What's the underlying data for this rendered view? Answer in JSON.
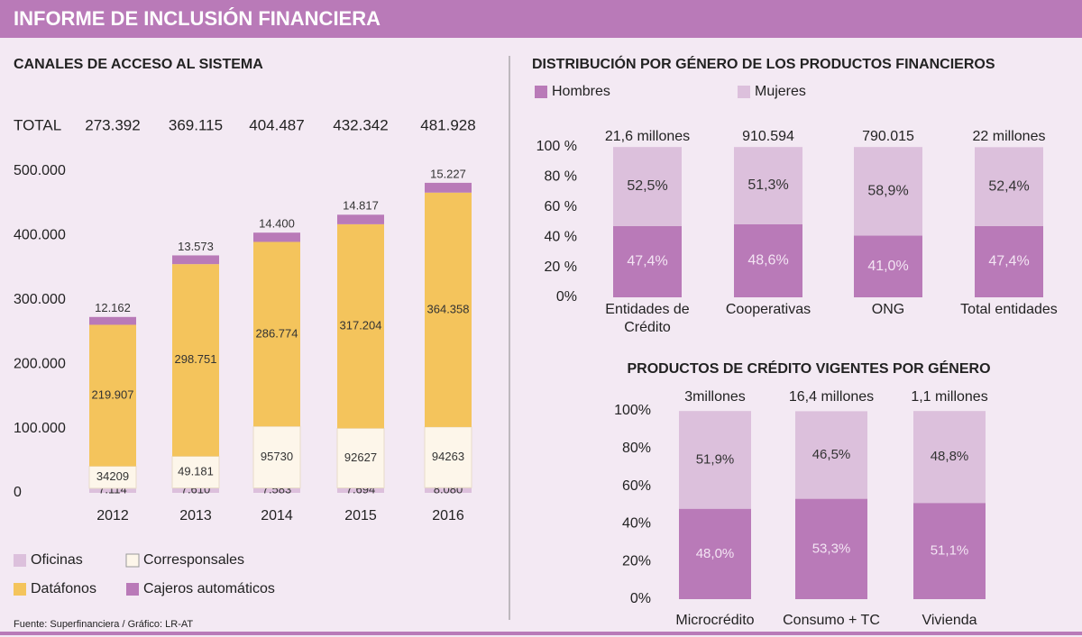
{
  "header": {
    "title": "INFORME DE INCLUSIÓN FINANCIERA"
  },
  "chart_data": [
    {
      "type": "stacked-bar",
      "title": "CANALES DE ACCESO AL SISTEMA",
      "categories": [
        "2012",
        "2013",
        "2014",
        "2015",
        "2016"
      ],
      "totals": {
        "label": "TOTAL",
        "values": [
          273392,
          369115,
          404487,
          432342,
          481928
        ],
        "value_labels": [
          "273.392",
          "369.115",
          "404.487",
          "432.342",
          "481.928"
        ]
      },
      "series": [
        {
          "name": "Oficinas",
          "color": "#dcc0dc",
          "values": [
            7114,
            7610,
            7583,
            7694,
            8080
          ],
          "value_labels": [
            "7.114",
            "7.610",
            "7.583",
            "7.694",
            "8.080"
          ]
        },
        {
          "name": "Corresponsales",
          "color": "#fdf6ea",
          "values": [
            34209,
            49181,
            95730,
            92627,
            94263
          ],
          "value_labels": [
            "34209",
            "49.181",
            "95730",
            "92627",
            "94263"
          ]
        },
        {
          "name": "Datáfonos",
          "color": "#f4c45c",
          "values": [
            219907,
            298751,
            286774,
            317204,
            364358
          ],
          "value_labels": [
            "219.907",
            "298.751",
            "286.774",
            "317.204",
            "364.358"
          ]
        },
        {
          "name": "Cajeros automáticos",
          "color": "#b97ab8",
          "values": [
            12162,
            13573,
            14400,
            14817,
            15227
          ],
          "value_labels": [
            "12.162",
            "13.573",
            "14.400",
            "14.817",
            "15.227"
          ]
        }
      ],
      "ylim": [
        0,
        500000
      ],
      "yticks": [
        0,
        {
          "value": 100000,
          "label": "100.000"
        },
        {
          "value": 200000,
          "label": "200.000"
        },
        {
          "value": 300000,
          "label": "300.000"
        },
        {
          "value": 400000,
          "label": "400.000"
        },
        {
          "value": 500000,
          "label": "500.000"
        }
      ]
    },
    {
      "type": "stacked-bar",
      "title": "DISTRIBUCIÓN POR GÉNERO DE LOS PRODUCTOS FINANCIEROS",
      "categories": [
        "Entidades de Crédito",
        "Cooperativas",
        "ONG",
        "Total entidades"
      ],
      "totals": {
        "values": [
          21600000,
          910594,
          790015,
          22000000
        ],
        "value_labels": [
          "21,6 millones",
          "910.594",
          "790.015",
          "22 millones"
        ]
      },
      "series": [
        {
          "name": "Hombres",
          "color": "#b97ab8",
          "values": [
            47.4,
            48.6,
            41.0,
            47.4
          ],
          "value_labels": [
            "47,4%",
            "48,6%",
            "41,0%",
            "47,4%"
          ]
        },
        {
          "name": "Mujeres",
          "color": "#dcc0dc",
          "values": [
            52.5,
            51.3,
            58.9,
            52.4
          ],
          "value_labels": [
            "52,5%",
            "51,3%",
            "58,9%",
            "52,4%"
          ]
        }
      ],
      "ylim": [
        0,
        100
      ],
      "yticks": [
        {
          "value": 0,
          "label": "0%"
        },
        {
          "value": 20,
          "label": "20 %"
        },
        {
          "value": 40,
          "label": "40 %"
        },
        {
          "value": 60,
          "label": "60 %"
        },
        {
          "value": 80,
          "label": "80 %"
        },
        {
          "value": 100,
          "label": "100 %"
        }
      ]
    },
    {
      "type": "stacked-bar",
      "title": "PRODUCTOS DE CRÉDITO VIGENTES POR GÉNERO",
      "categories": [
        "Microcrédito",
        "Consumo + TC",
        "Vivienda"
      ],
      "totals": {
        "values": [
          3000000,
          16400000,
          1100000
        ],
        "value_labels": [
          "3millones",
          "16,4 millones",
          "1,1 millones"
        ]
      },
      "series": [
        {
          "color": "#b97ab8",
          "values": [
            48.0,
            53.3,
            51.1
          ],
          "value_labels": [
            "48,0%",
            "53,3%",
            "51,1%"
          ]
        },
        {
          "color": "#dcc0dc",
          "values": [
            51.9,
            46.5,
            48.8
          ],
          "value_labels": [
            "51,9%",
            "46,5%",
            "48,8%"
          ]
        }
      ],
      "ylim": [
        0,
        100
      ],
      "yticks": [
        {
          "value": 0,
          "label": "0%"
        },
        {
          "value": 20,
          "label": "20%"
        },
        {
          "value": 40,
          "label": "40%"
        },
        {
          "value": 60,
          "label": "60%"
        },
        {
          "value": 80,
          "label": "80%"
        },
        {
          "value": 100,
          "label": "100%"
        }
      ]
    }
  ],
  "footer": {
    "source": "Fuente: Superfinanciera / Gráfico: LR-AT"
  }
}
